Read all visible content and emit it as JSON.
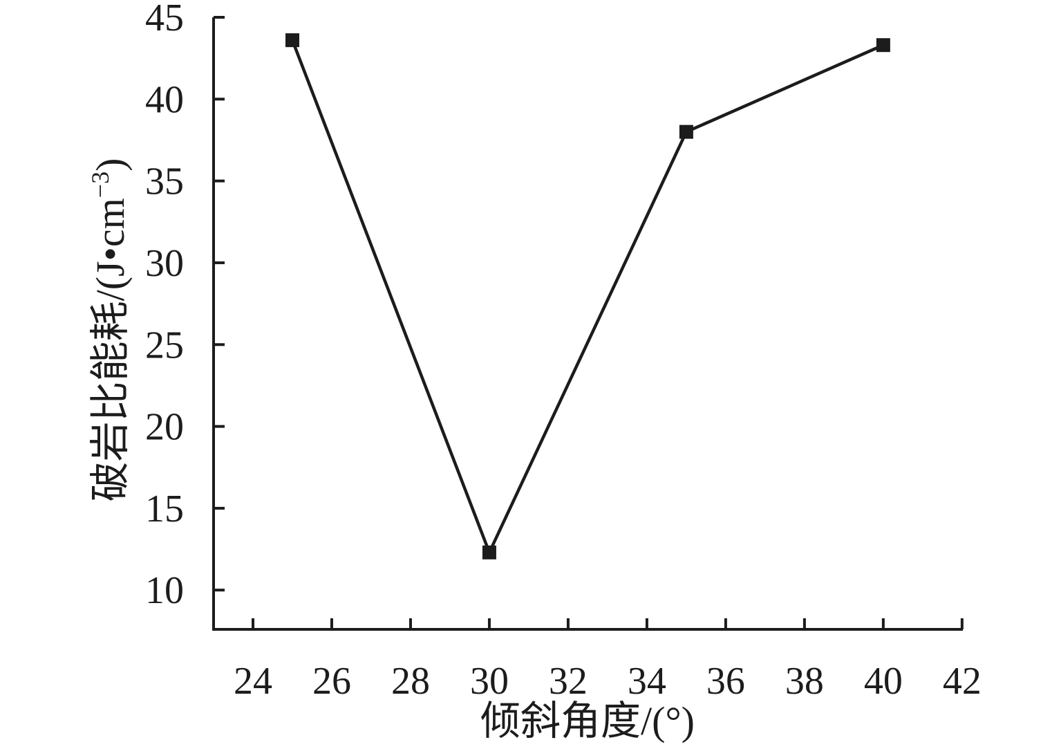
{
  "figure": {
    "background_color": "#ffffff",
    "foreground_color": "#1c1c1c"
  },
  "chart_data": {
    "type": "line",
    "title": "",
    "xlabel": "倾斜角度/(°)",
    "ylabel": "破岩比能耗/(J•cm⁻³)",
    "ylabel_parts": {
      "base": "破岩比能耗/(J•cm",
      "sup": "−3",
      "end": ")"
    },
    "series": [
      {
        "name": "破岩比能耗",
        "x": [
          25,
          30,
          35,
          40
        ],
        "y": [
          43.6,
          12.3,
          38.0,
          43.3
        ],
        "marker": "filled-square",
        "line_style": "solid",
        "color": "#1c1c1c"
      }
    ],
    "x_ticks": [
      24,
      26,
      28,
      30,
      32,
      34,
      36,
      38,
      40,
      42
    ],
    "y_ticks": [
      10,
      15,
      20,
      25,
      30,
      35,
      40,
      45
    ],
    "xlim": [
      23,
      42.02
    ],
    "ylim": [
      7.6,
      45
    ],
    "grid": false,
    "legend": false,
    "tick_direction": "in",
    "spines": [
      "left",
      "bottom"
    ]
  }
}
